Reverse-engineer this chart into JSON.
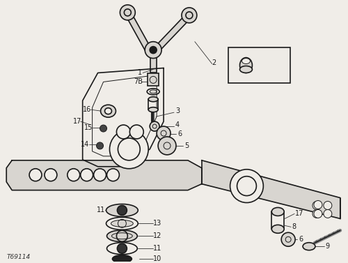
{
  "figure_id": "T69114",
  "background_color": "#f0ede8",
  "line_color": "#1a1a1a",
  "fill_light": "#d8d5d0",
  "fill_dark": "#555555",
  "fill_white": "#f0ede8",
  "box_bg": "#eeebe6"
}
